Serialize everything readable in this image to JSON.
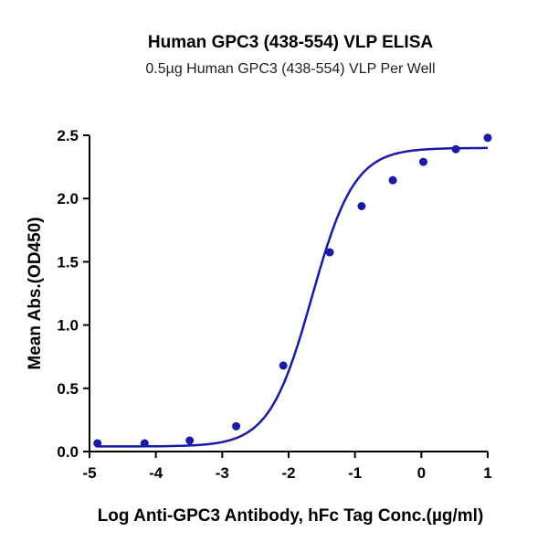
{
  "chart_data": {
    "type": "scatter",
    "title": "Human GPC3 (438-554) VLP ELISA",
    "subtitle": "0.5µg Human GPC3 (438-554) VLP Per Well",
    "xlabel": "Log Anti-GPC3 Antibody, hFc Tag Conc.(µg/ml)",
    "ylabel": "Mean Abs.(OD450)",
    "xlim": [
      -5,
      1
    ],
    "ylim": [
      0,
      2.5
    ],
    "xticks": [
      "-5",
      "-4",
      "-3",
      "-2",
      "-1",
      "0",
      "1"
    ],
    "yticks": [
      "0.0",
      "0.5",
      "1.0",
      "1.5",
      "2.0",
      "2.5"
    ],
    "grid": false,
    "color": "#1a1aa8",
    "points": [
      {
        "x": -4.88,
        "y": 0.065
      },
      {
        "x": -4.17,
        "y": 0.065
      },
      {
        "x": -3.49,
        "y": 0.087
      },
      {
        "x": -2.79,
        "y": 0.2
      },
      {
        "x": -2.08,
        "y": 0.68
      },
      {
        "x": -1.38,
        "y": 1.575
      },
      {
        "x": -0.9,
        "y": 1.94
      },
      {
        "x": -0.43,
        "y": 2.145
      },
      {
        "x": 0.03,
        "y": 2.29
      },
      {
        "x": 0.52,
        "y": 2.39
      },
      {
        "x": 1.0,
        "y": 2.48
      }
    ],
    "fit_curve": {
      "model": "4PL",
      "bottom": 0.04,
      "top": 2.4,
      "logEC50": -1.65,
      "hill": 1.35
    }
  }
}
